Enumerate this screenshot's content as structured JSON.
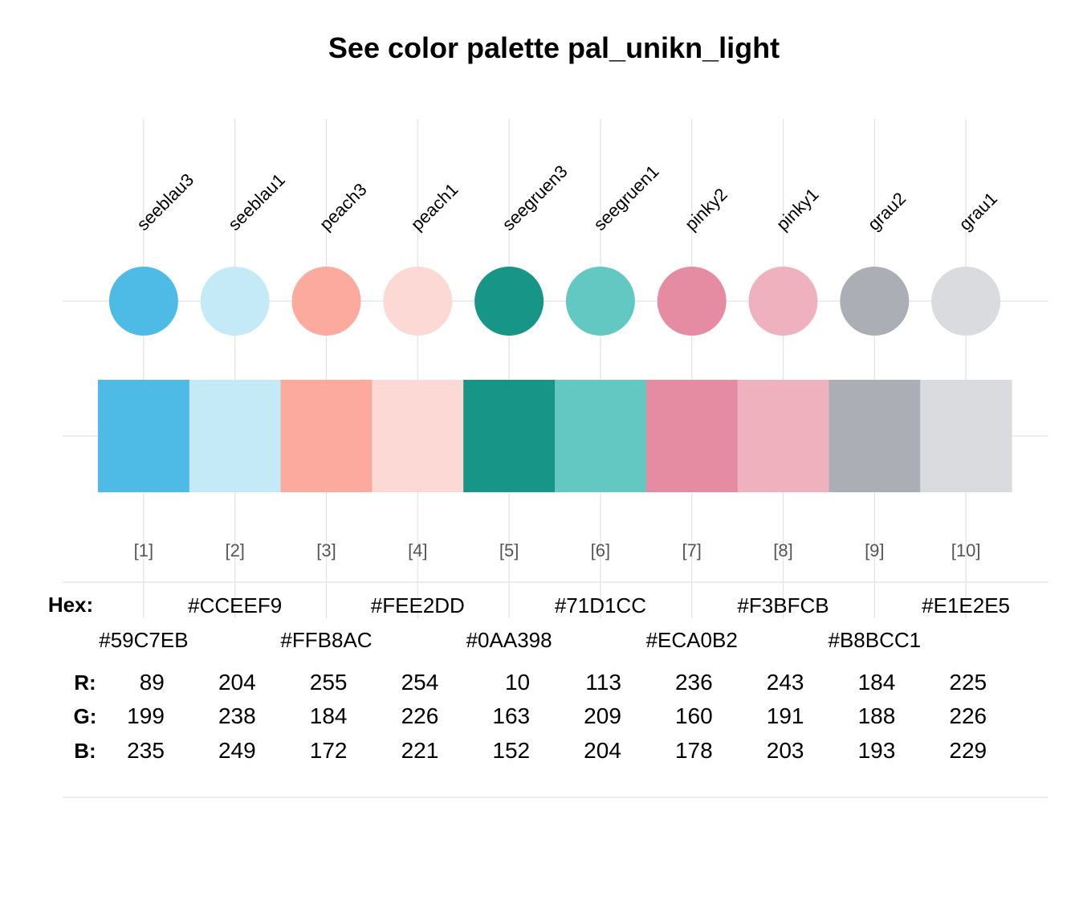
{
  "chart_data": {
    "type": "table",
    "title": "See color palette pal_unikn_light",
    "row_labels": {
      "hex": "Hex:",
      "r": "R:",
      "g": "G:",
      "b": "B:"
    },
    "colors": [
      {
        "index": "[1]",
        "name": "seeblau3",
        "hex": "#59C7EB",
        "r": 89,
        "g": 199,
        "b": 235
      },
      {
        "index": "[2]",
        "name": "seeblau1",
        "hex": "#CCEEF9",
        "r": 204,
        "g": 238,
        "b": 249
      },
      {
        "index": "[3]",
        "name": "peach3",
        "hex": "#FFB8AC",
        "r": 255,
        "g": 184,
        "b": 172
      },
      {
        "index": "[4]",
        "name": "peach1",
        "hex": "#FEE2DD",
        "r": 254,
        "g": 226,
        "b": 221
      },
      {
        "index": "[5]",
        "name": "seegruen3",
        "hex": "#0AA398",
        "r": 10,
        "g": 163,
        "b": 152
      },
      {
        "index": "[6]",
        "name": "seegruen1",
        "hex": "#71D1CC",
        "r": 113,
        "g": 209,
        "b": 204
      },
      {
        "index": "[7]",
        "name": "pinky2",
        "hex": "#ECA0B2",
        "r": 236,
        "g": 160,
        "b": 178
      },
      {
        "index": "[8]",
        "name": "pinky1",
        "hex": "#F3BFCB",
        "r": 243,
        "g": 191,
        "b": 203
      },
      {
        "index": "[9]",
        "name": "grau2",
        "hex": "#B8BCC1",
        "r": 184,
        "g": 188,
        "b": 193
      },
      {
        "index": "[10]",
        "name": "grau1",
        "hex": "#E1E2E5",
        "r": 225,
        "g": 226,
        "b": 229
      }
    ],
    "display_colors": [
      "#4EBBE6",
      "#C4EAF7",
      "#FCA99E",
      "#FDD9D5",
      "#179688",
      "#63C8C2",
      "#E58BA2",
      "#F0B1BF",
      "#ABAEB5",
      "#DADBDE"
    ]
  }
}
